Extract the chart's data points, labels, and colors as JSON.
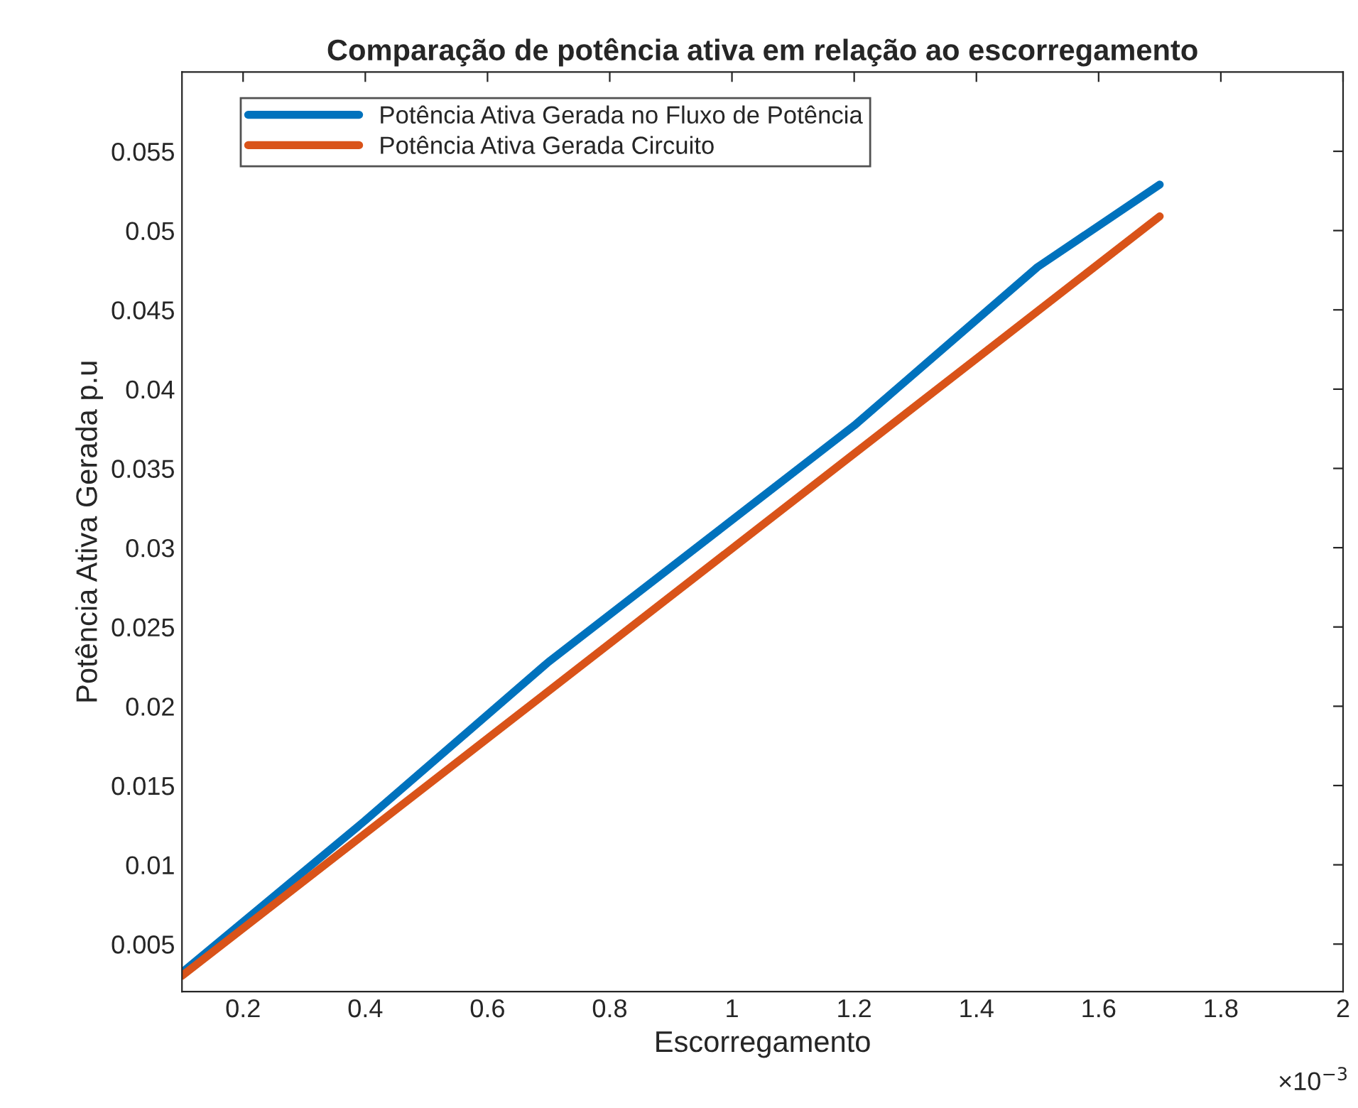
{
  "chart_data": {
    "type": "line",
    "title": "Comparação de potência ativa em relação ao escorregamento",
    "xlabel": "Escorregamento",
    "ylabel": "Potência Ativa Gerada p.u",
    "annotations": [
      "×10$^{−3}$"
    ],
    "series": [
      {
        "name": "Potência Ativa Gerada no Fluxo de Potência",
        "color": "#0072bd",
        "x": [
          0.1,
          0.4,
          0.7,
          1.2,
          1.5,
          1.7
        ],
        "values": [
          0.0032,
          0.0128,
          0.0228,
          0.0377,
          0.0477,
          0.0529
        ]
      },
      {
        "name": "Potência Ativa Gerada Circuito",
        "color": "#d95319",
        "x": [
          0.1,
          1.7
        ],
        "values": [
          0.003,
          0.0509
        ]
      }
    ],
    "xlim": [
      0.1,
      2
    ],
    "xticks": [
      0.2,
      0.4,
      0.6,
      0.8,
      1,
      1.2,
      1.4,
      1.6,
      1.8,
      2
    ],
    "ylim": [
      0.002,
      0.06
    ],
    "yticks": [
      0.005,
      0.01,
      0.015,
      0.02,
      0.025,
      0.03,
      0.035,
      0.04,
      0.045,
      0.05,
      0.055
    ],
    "grid": false,
    "legend": "top left",
    "line_style": "solid",
    "marker": "none"
  }
}
